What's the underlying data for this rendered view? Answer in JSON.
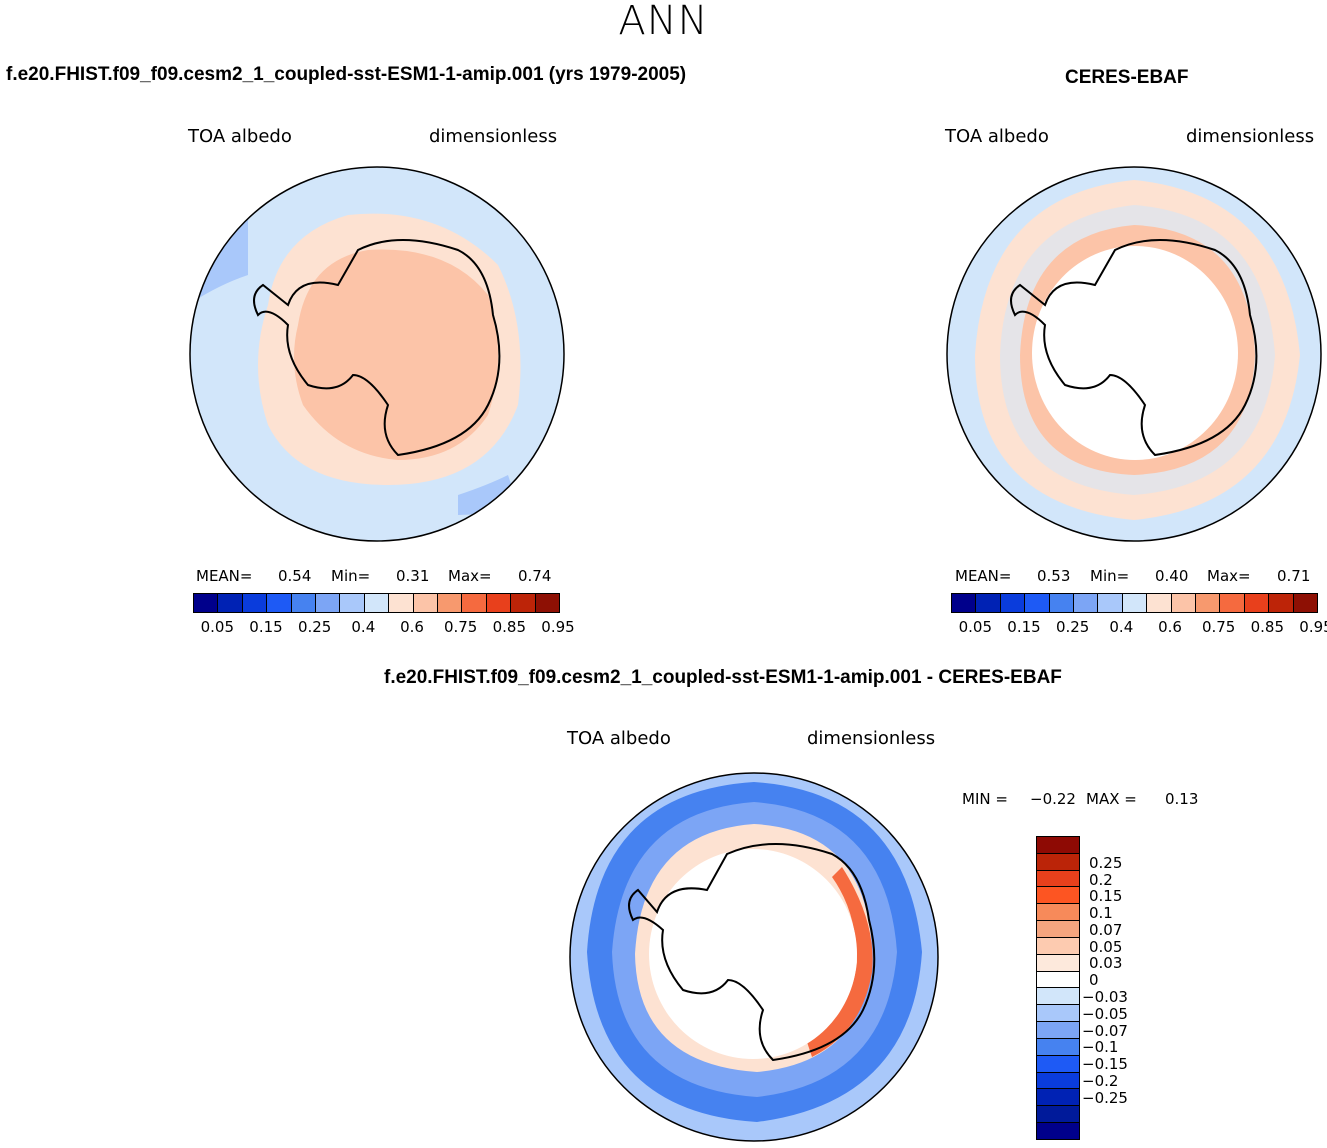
{
  "page": {
    "title": "ANN"
  },
  "panels": {
    "model": {
      "title": "f.e20.FHIST.f09_f09.cesm2_1_coupled-sst-ESM1-1-amip.001 (yrs 1979-2005)",
      "left_label": "TOA albedo",
      "right_label": "dimensionless",
      "stats": {
        "mean_label": "MEAN=",
        "mean": "0.54",
        "min_label": "Min=",
        "min": "0.31",
        "max_label": "Max=",
        "max": "0.74"
      }
    },
    "obs": {
      "title": "CERES-EBAF",
      "left_label": "TOA albedo",
      "right_label": "dimensionless",
      "stats": {
        "mean_label": "MEAN=",
        "mean": "0.53",
        "min_label": "Min=",
        "min": "0.40",
        "max_label": "Max=",
        "max": "0.71"
      }
    },
    "diff": {
      "title": "f.e20.FHIST.f09_f09.cesm2_1_coupled-sst-ESM1-1-amip.001 - CERES-EBAF",
      "left_label": "TOA albedo",
      "right_label": "dimensionless",
      "stats": {
        "min_label": "MIN =",
        "min": "−0.22",
        "max_label": "MAX =",
        "max": "0.13"
      }
    }
  },
  "colorbars": {
    "abs": {
      "colors": [
        "#00008b",
        "#0022b4",
        "#0a3cdc",
        "#1e5af5",
        "#4682f0",
        "#7ca5f5",
        "#a9c8fa",
        "#d2e6fa",
        "#fde2d2",
        "#fcc4a8",
        "#f7996e",
        "#f56a3f",
        "#e8401c",
        "#bd2408",
        "#8e1004"
      ],
      "tick_labels": [
        "0.05",
        "0.15",
        "0.25",
        "0.4",
        "0.6",
        "0.75",
        "0.85",
        "0.95"
      ]
    },
    "diff": {
      "colors": [
        "#8e0a04",
        "#bb2408",
        "#e8401c",
        "#fd5522",
        "#f78a5a",
        "#f5a57f",
        "#fdcbb0",
        "#fde9dc",
        "#ffffff",
        "#d2e6fa",
        "#a9c8fa",
        "#7ca5f5",
        "#4682f0",
        "#1e5af5",
        "#0a3cdc",
        "#0022b4",
        "#001a9a",
        "#00008b"
      ],
      "tick_labels": [
        "0.25",
        "0.2",
        "0.15",
        "0.1",
        "0.07",
        "0.05",
        "0.03",
        "0",
        "−0.03",
        "−0.05",
        "−0.07",
        "−0.1",
        "−0.15",
        "−0.2",
        "−0.25"
      ]
    }
  }
}
